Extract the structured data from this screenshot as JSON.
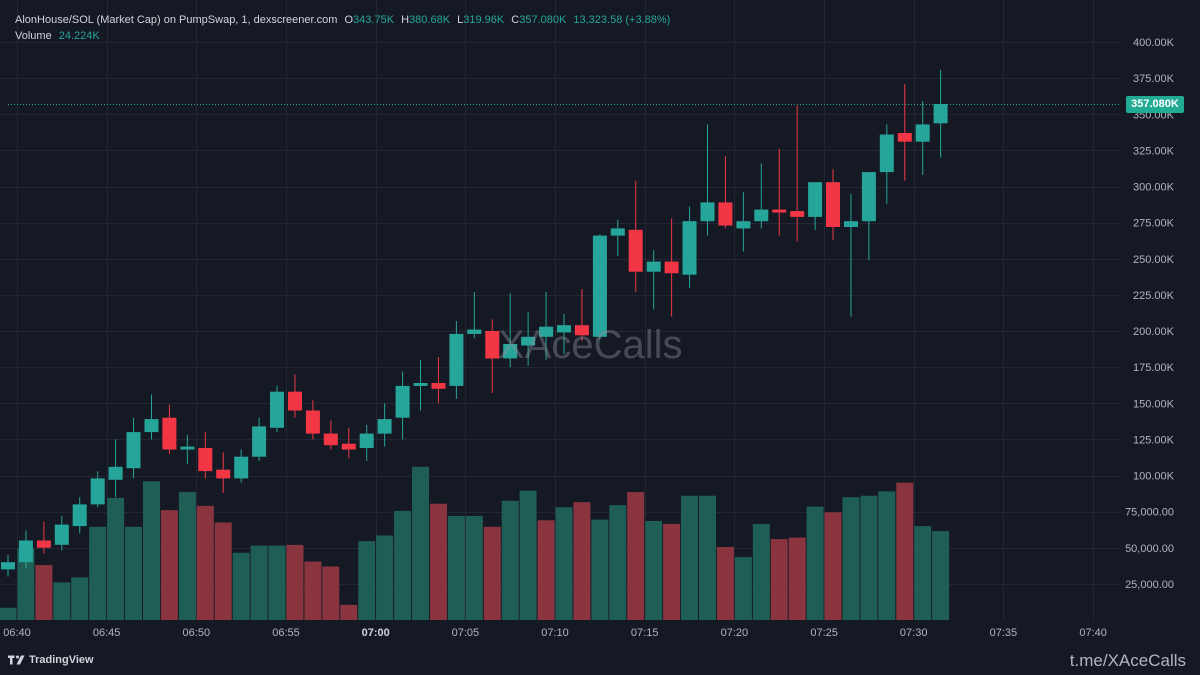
{
  "header": {
    "symbol_label": "AlonHouse/SOL (Market Cap) on PumpSwap, 1, dexscreener.com",
    "o_label": "O",
    "o_value": "343.75K",
    "h_label": "H",
    "h_value": "380.68K",
    "l_label": "L",
    "l_value": "319.96K",
    "c_label": "C",
    "c_value": "357.080K",
    "change_value": "13,323.58 (+3.88%)",
    "volume_label": "Volume",
    "volume_value": "24.224K"
  },
  "last_price_tag": "357.080K",
  "watermark": "XAceCalls",
  "footer": {
    "brand": "TradingView",
    "channel": "t.me/XAceCalls"
  },
  "colors": {
    "background": "#151924",
    "up": "#26a69a",
    "down": "#f23645",
    "volume_up": "#1f5e55",
    "volume_down": "#8a3440",
    "text": "#b2b5be"
  },
  "chart_data": {
    "type": "candlestick",
    "x_unit": "time (1-minute bars)",
    "time_ticks": [
      {
        "t": 0,
        "label": "06:40"
      },
      {
        "t": 5,
        "label": "06:45"
      },
      {
        "t": 10,
        "label": "06:50"
      },
      {
        "t": 15,
        "label": "06:55"
      },
      {
        "t": 20,
        "label": "07:00",
        "bold": true
      },
      {
        "t": 25,
        "label": "07:05"
      },
      {
        "t": 30,
        "label": "07:10"
      },
      {
        "t": 35,
        "label": "07:15"
      },
      {
        "t": 40,
        "label": "07:20"
      },
      {
        "t": 45,
        "label": "07:25"
      },
      {
        "t": 50,
        "label": "07:30"
      },
      {
        "t": 55,
        "label": "07:35"
      },
      {
        "t": 60,
        "label": "07:40"
      }
    ],
    "x_range": [
      -0.5,
      61.5
    ],
    "y_range": [
      0,
      400000
    ],
    "y_ticks": [
      {
        "v": 400000,
        "label": "400.00K"
      },
      {
        "v": 375000,
        "label": "375.00K"
      },
      {
        "v": 350000,
        "label": "350.00K"
      },
      {
        "v": 325000,
        "label": "325.00K"
      },
      {
        "v": 300000,
        "label": "300.00K"
      },
      {
        "v": 275000,
        "label": "275.00K"
      },
      {
        "v": 250000,
        "label": "250.00K"
      },
      {
        "v": 225000,
        "label": "225.00K"
      },
      {
        "v": 200000,
        "label": "200.00K"
      },
      {
        "v": 175000,
        "label": "175.00K"
      },
      {
        "v": 150000,
        "label": "150.00K"
      },
      {
        "v": 125000,
        "label": "125.00K"
      },
      {
        "v": 100000,
        "label": "100.00K"
      },
      {
        "v": 75000,
        "label": "75,000.00"
      },
      {
        "v": 50000,
        "label": "50,000.00"
      },
      {
        "v": 25000,
        "label": "25,000.00"
      }
    ],
    "last_price": 357080,
    "candles": [
      {
        "t": -0.5,
        "o": 35000,
        "h": 45000,
        "l": 30000,
        "c": 40000
      },
      {
        "t": 0.5,
        "o": 40000,
        "h": 62000,
        "l": 36000,
        "c": 55000
      },
      {
        "t": 1.5,
        "o": 55000,
        "h": 68000,
        "l": 46000,
        "c": 50000
      },
      {
        "t": 2.5,
        "o": 52000,
        "h": 72000,
        "l": 48000,
        "c": 66000
      },
      {
        "t": 3.5,
        "o": 65000,
        "h": 85000,
        "l": 60000,
        "c": 80000
      },
      {
        "t": 4.5,
        "o": 80000,
        "h": 103000,
        "l": 78000,
        "c": 98000
      },
      {
        "t": 5.5,
        "o": 97000,
        "h": 125000,
        "l": 85000,
        "c": 106000
      },
      {
        "t": 6.5,
        "o": 105000,
        "h": 140000,
        "l": 98000,
        "c": 130000
      },
      {
        "t": 7.5,
        "o": 130000,
        "h": 156000,
        "l": 125000,
        "c": 139000
      },
      {
        "t": 8.5,
        "o": 140000,
        "h": 149000,
        "l": 115000,
        "c": 118000
      },
      {
        "t": 9.5,
        "o": 118000,
        "h": 128000,
        "l": 108000,
        "c": 120000
      },
      {
        "t": 10.5,
        "o": 119000,
        "h": 130000,
        "l": 98000,
        "c": 103000
      },
      {
        "t": 11.5,
        "o": 104000,
        "h": 116000,
        "l": 88000,
        "c": 98000
      },
      {
        "t": 12.5,
        "o": 98000,
        "h": 118000,
        "l": 95000,
        "c": 113000
      },
      {
        "t": 13.5,
        "o": 113000,
        "h": 140000,
        "l": 110000,
        "c": 134000
      },
      {
        "t": 14.5,
        "o": 133000,
        "h": 162000,
        "l": 130000,
        "c": 158000
      },
      {
        "t": 15.5,
        "o": 158000,
        "h": 170000,
        "l": 140000,
        "c": 145000
      },
      {
        "t": 16.5,
        "o": 145000,
        "h": 152000,
        "l": 125000,
        "c": 129000
      },
      {
        "t": 17.5,
        "o": 129000,
        "h": 138000,
        "l": 118000,
        "c": 121000
      },
      {
        "t": 18.5,
        "o": 122000,
        "h": 133000,
        "l": 112000,
        "c": 118000
      },
      {
        "t": 19.5,
        "o": 119000,
        "h": 135000,
        "l": 110000,
        "c": 129000
      },
      {
        "t": 20.5,
        "o": 129000,
        "h": 150000,
        "l": 120000,
        "c": 139000
      },
      {
        "t": 21.5,
        "o": 140000,
        "h": 172000,
        "l": 125000,
        "c": 162000
      },
      {
        "t": 22.5,
        "o": 162000,
        "h": 180000,
        "l": 145000,
        "c": 164000
      },
      {
        "t": 23.5,
        "o": 164000,
        "h": 182000,
        "l": 150000,
        "c": 160000
      },
      {
        "t": 24.5,
        "o": 162000,
        "h": 207000,
        "l": 153000,
        "c": 198000
      },
      {
        "t": 25.5,
        "o": 198000,
        "h": 227000,
        "l": 195000,
        "c": 201000
      },
      {
        "t": 26.5,
        "o": 200000,
        "h": 208000,
        "l": 157000,
        "c": 181000
      },
      {
        "t": 27.5,
        "o": 181000,
        "h": 226000,
        "l": 175000,
        "c": 191000
      },
      {
        "t": 28.5,
        "o": 190000,
        "h": 213000,
        "l": 176000,
        "c": 196000
      },
      {
        "t": 29.5,
        "o": 196000,
        "h": 227000,
        "l": 180000,
        "c": 203000
      },
      {
        "t": 30.5,
        "o": 199000,
        "h": 212000,
        "l": 184000,
        "c": 204000
      },
      {
        "t": 31.5,
        "o": 204000,
        "h": 229000,
        "l": 193000,
        "c": 197000
      },
      {
        "t": 32.5,
        "o": 196000,
        "h": 267000,
        "l": 194000,
        "c": 266000
      },
      {
        "t": 33.5,
        "o": 266000,
        "h": 277000,
        "l": 252000,
        "c": 271000
      },
      {
        "t": 34.5,
        "o": 270000,
        "h": 304000,
        "l": 227000,
        "c": 241000
      },
      {
        "t": 35.5,
        "o": 241000,
        "h": 256000,
        "l": 215000,
        "c": 248000
      },
      {
        "t": 36.5,
        "o": 248000,
        "h": 278000,
        "l": 210000,
        "c": 240000
      },
      {
        "t": 37.5,
        "o": 239000,
        "h": 286000,
        "l": 230000,
        "c": 276000
      },
      {
        "t": 38.5,
        "o": 276000,
        "h": 343000,
        "l": 266000,
        "c": 289000
      },
      {
        "t": 39.5,
        "o": 289000,
        "h": 321000,
        "l": 271000,
        "c": 273000
      },
      {
        "t": 40.5,
        "o": 271000,
        "h": 296000,
        "l": 255000,
        "c": 276000
      },
      {
        "t": 41.5,
        "o": 276000,
        "h": 316000,
        "l": 271000,
        "c": 284000
      },
      {
        "t": 42.5,
        "o": 284000,
        "h": 326000,
        "l": 266000,
        "c": 282000
      },
      {
        "t": 43.5,
        "o": 283000,
        "h": 356000,
        "l": 262000,
        "c": 279000
      },
      {
        "t": 44.5,
        "o": 279000,
        "h": 302000,
        "l": 270000,
        "c": 303000
      },
      {
        "t": 45.5,
        "o": 303000,
        "h": 312000,
        "l": 263000,
        "c": 272000
      },
      {
        "t": 46.5,
        "o": 272000,
        "h": 295000,
        "l": 210000,
        "c": 276000
      },
      {
        "t": 47.5,
        "o": 276000,
        "h": 309000,
        "l": 249000,
        "c": 310000
      },
      {
        "t": 48.5,
        "o": 310000,
        "h": 343000,
        "l": 288000,
        "c": 336000
      },
      {
        "t": 49.5,
        "o": 337000,
        "h": 371000,
        "l": 304000,
        "c": 331000
      },
      {
        "t": 50.5,
        "o": 331000,
        "h": 359000,
        "l": 308000,
        "c": 343000
      },
      {
        "t": 51.5,
        "o": 343750,
        "h": 380680,
        "l": 319960,
        "c": 357080
      }
    ],
    "volume": [
      {
        "t": -0.5,
        "v": 8500,
        "up": true
      },
      {
        "t": 0.5,
        "v": 49500,
        "up": true
      },
      {
        "t": 1.5,
        "v": 38000,
        "up": false
      },
      {
        "t": 2.5,
        "v": 26000,
        "up": true
      },
      {
        "t": 3.5,
        "v": 29500,
        "up": true
      },
      {
        "t": 4.5,
        "v": 64500,
        "up": true
      },
      {
        "t": 5.5,
        "v": 84500,
        "up": true
      },
      {
        "t": 6.5,
        "v": 64500,
        "up": true
      },
      {
        "t": 7.5,
        "v": 96000,
        "up": true
      },
      {
        "t": 8.5,
        "v": 76000,
        "up": false
      },
      {
        "t": 9.5,
        "v": 88500,
        "up": true
      },
      {
        "t": 10.5,
        "v": 79000,
        "up": false
      },
      {
        "t": 11.5,
        "v": 67500,
        "up": false
      },
      {
        "t": 12.5,
        "v": 46500,
        "up": true
      },
      {
        "t": 13.5,
        "v": 51500,
        "up": true
      },
      {
        "t": 14.5,
        "v": 51500,
        "up": true
      },
      {
        "t": 15.5,
        "v": 52000,
        "up": false
      },
      {
        "t": 16.5,
        "v": 40500,
        "up": false
      },
      {
        "t": 17.5,
        "v": 37000,
        "up": false
      },
      {
        "t": 18.5,
        "v": 10500,
        "up": false
      },
      {
        "t": 19.5,
        "v": 54500,
        "up": true
      },
      {
        "t": 20.5,
        "v": 58500,
        "up": true
      },
      {
        "t": 21.5,
        "v": 75500,
        "up": true
      },
      {
        "t": 22.5,
        "v": 106000,
        "up": true
      },
      {
        "t": 23.5,
        "v": 80500,
        "up": false
      },
      {
        "t": 24.5,
        "v": 72000,
        "up": true
      },
      {
        "t": 25.5,
        "v": 72000,
        "up": true
      },
      {
        "t": 26.5,
        "v": 64500,
        "up": false
      },
      {
        "t": 27.5,
        "v": 82500,
        "up": true
      },
      {
        "t": 28.5,
        "v": 89500,
        "up": true
      },
      {
        "t": 29.5,
        "v": 69000,
        "up": false
      },
      {
        "t": 30.5,
        "v": 78000,
        "up": true
      },
      {
        "t": 31.5,
        "v": 81500,
        "up": false
      },
      {
        "t": 32.5,
        "v": 69500,
        "up": true
      },
      {
        "t": 33.5,
        "v": 79500,
        "up": true
      },
      {
        "t": 34.5,
        "v": 88500,
        "up": false
      },
      {
        "t": 35.5,
        "v": 68500,
        "up": true
      },
      {
        "t": 36.5,
        "v": 66500,
        "up": false
      },
      {
        "t": 37.5,
        "v": 86000,
        "up": true
      },
      {
        "t": 38.5,
        "v": 86000,
        "up": true
      },
      {
        "t": 39.5,
        "v": 50500,
        "up": false
      },
      {
        "t": 40.5,
        "v": 43500,
        "up": true
      },
      {
        "t": 41.5,
        "v": 66500,
        "up": true
      },
      {
        "t": 42.5,
        "v": 56000,
        "up": false
      },
      {
        "t": 43.5,
        "v": 57000,
        "up": false
      },
      {
        "t": 44.5,
        "v": 78500,
        "up": true
      },
      {
        "t": 45.5,
        "v": 74500,
        "up": false
      },
      {
        "t": 46.5,
        "v": 85000,
        "up": true
      },
      {
        "t": 47.5,
        "v": 86000,
        "up": true
      },
      {
        "t": 48.5,
        "v": 89000,
        "up": true
      },
      {
        "t": 49.5,
        "v": 95000,
        "up": false
      },
      {
        "t": 50.5,
        "v": 65000,
        "up": true
      },
      {
        "t": 51.5,
        "v": 61500,
        "up": true
      }
    ]
  }
}
